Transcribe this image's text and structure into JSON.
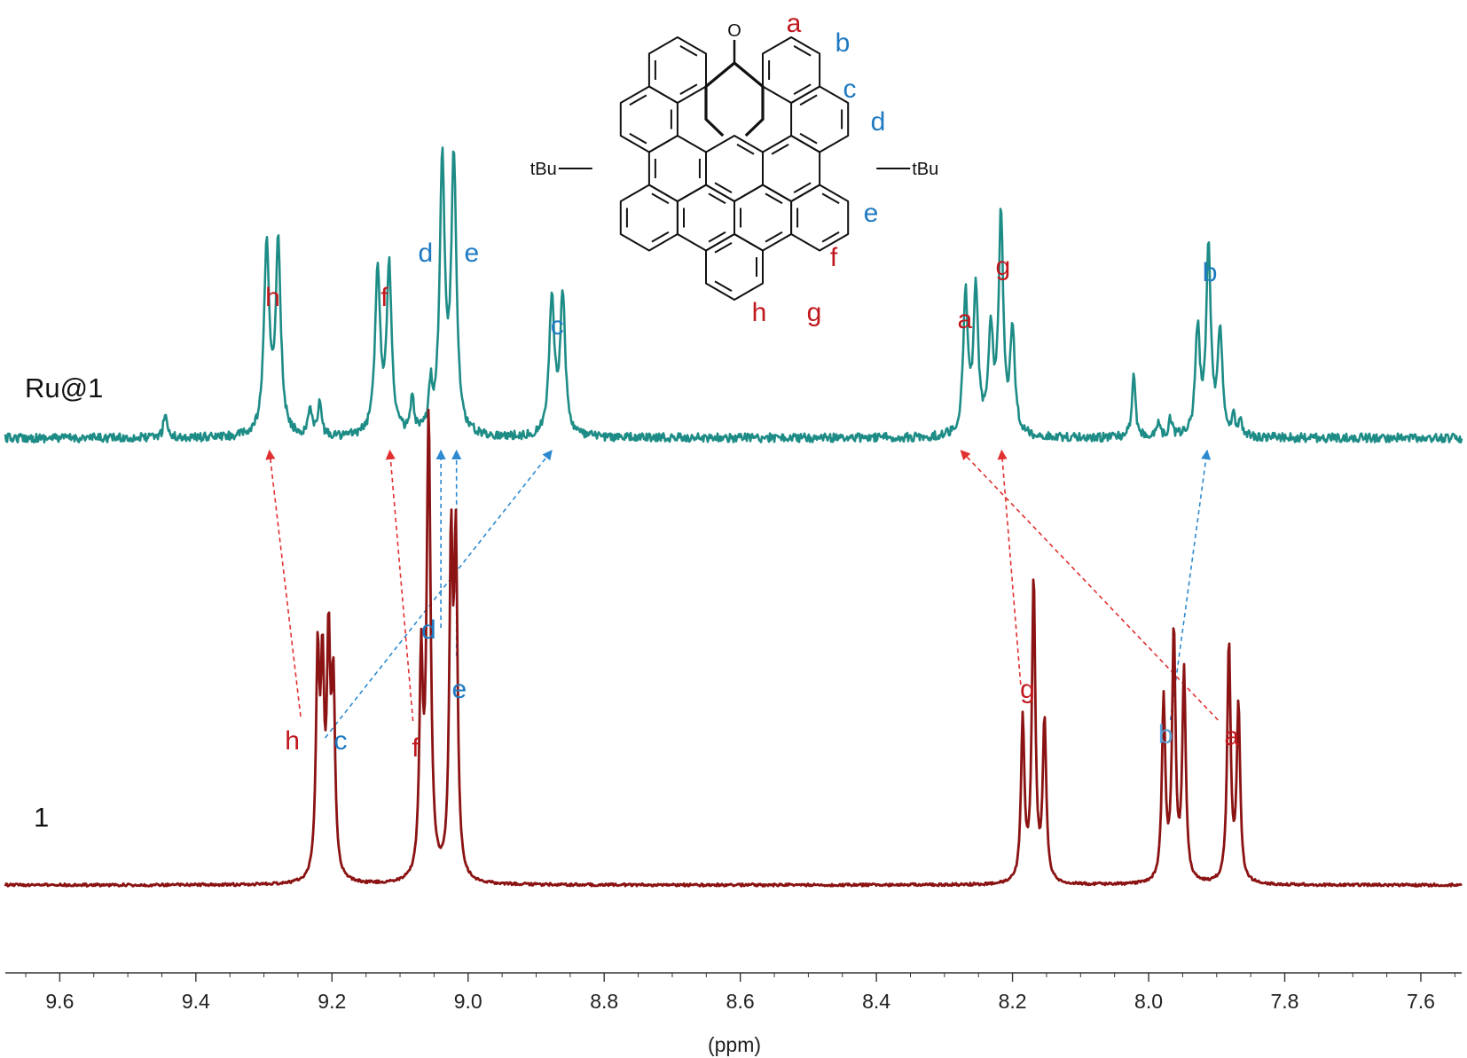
{
  "chart_data": {
    "type": "line",
    "x_axis": {
      "label": "(ppm)",
      "range": [
        9.68,
        7.54
      ],
      "reversed": true,
      "ticks": [
        9.6,
        9.4,
        9.2,
        9.0,
        8.8,
        8.6,
        8.4,
        8.2,
        8.0,
        7.8,
        7.6
      ],
      "tick_labels": [
        "9.6",
        "9.4",
        "9.2",
        "9.0",
        "8.8",
        "8.6",
        "8.4",
        "8.2",
        "8.0",
        "7.8",
        "7.6"
      ]
    },
    "grid": false,
    "series": [
      {
        "name": "Ru@1",
        "color": "#1e8c86",
        "peaks": [
          {
            "ppm": 9.296,
            "h": 0.44,
            "w": 0.0045
          },
          {
            "ppm": 9.279,
            "h": 0.44,
            "w": 0.0045
          },
          {
            "ppm": 9.133,
            "h": 0.38,
            "w": 0.0045
          },
          {
            "ppm": 9.116,
            "h": 0.38,
            "w": 0.0045
          },
          {
            "ppm": 9.038,
            "h": 0.62,
            "w": 0.0045
          },
          {
            "ppm": 9.021,
            "h": 0.63,
            "w": 0.0045
          },
          {
            "ppm": 8.877,
            "h": 0.32,
            "w": 0.0045
          },
          {
            "ppm": 8.861,
            "h": 0.32,
            "w": 0.0045
          },
          {
            "ppm": 8.269,
            "h": 0.32,
            "w": 0.004
          },
          {
            "ppm": 8.254,
            "h": 0.34,
            "w": 0.004
          },
          {
            "ppm": 8.232,
            "h": 0.24,
            "w": 0.004
          },
          {
            "ppm": 8.217,
            "h": 0.5,
            "w": 0.004
          },
          {
            "ppm": 8.2,
            "h": 0.24,
            "w": 0.004
          },
          {
            "ppm": 7.928,
            "h": 0.24,
            "w": 0.004
          },
          {
            "ppm": 7.912,
            "h": 0.43,
            "w": 0.004
          },
          {
            "ppm": 7.895,
            "h": 0.24,
            "w": 0.004
          },
          {
            "ppm": 8.022,
            "h": 0.15,
            "w": 0.003
          },
          {
            "ppm": 9.445,
            "h": 0.06,
            "w": 0.003
          },
          {
            "ppm": 9.232,
            "h": 0.07,
            "w": 0.003
          },
          {
            "ppm": 9.218,
            "h": 0.08,
            "w": 0.003
          },
          {
            "ppm": 9.082,
            "h": 0.08,
            "w": 0.003
          },
          {
            "ppm": 9.055,
            "h": 0.1,
            "w": 0.003
          },
          {
            "ppm": 7.985,
            "h": 0.03,
            "w": 0.003
          },
          {
            "ppm": 7.968,
            "h": 0.04,
            "w": 0.003
          },
          {
            "ppm": 7.875,
            "h": 0.04,
            "w": 0.003
          },
          {
            "ppm": 7.865,
            "h": 0.03,
            "w": 0.003
          }
        ]
      },
      {
        "name": "1",
        "color": "#8b1313",
        "peaks": [
          {
            "ppm": 9.221,
            "h": 0.44,
            "w": 0.003
          },
          {
            "ppm": 9.214,
            "h": 0.4,
            "w": 0.003
          },
          {
            "ppm": 9.205,
            "h": 0.46,
            "w": 0.003
          },
          {
            "ppm": 9.198,
            "h": 0.38,
            "w": 0.003
          },
          {
            "ppm": 9.069,
            "h": 0.43,
            "w": 0.003
          },
          {
            "ppm": 9.058,
            "h": 0.94,
            "w": 0.0035
          },
          {
            "ppm": 9.025,
            "h": 0.66,
            "w": 0.003
          },
          {
            "ppm": 9.018,
            "h": 0.66,
            "w": 0.003
          },
          {
            "ppm": 8.185,
            "h": 0.33,
            "w": 0.003
          },
          {
            "ppm": 8.169,
            "h": 0.62,
            "w": 0.003
          },
          {
            "ppm": 8.153,
            "h": 0.33,
            "w": 0.003
          },
          {
            "ppm": 7.978,
            "h": 0.37,
            "w": 0.003
          },
          {
            "ppm": 7.963,
            "h": 0.51,
            "w": 0.003
          },
          {
            "ppm": 7.948,
            "h": 0.43,
            "w": 0.003
          },
          {
            "ppm": 7.882,
            "h": 0.49,
            "w": 0.003
          },
          {
            "ppm": 7.868,
            "h": 0.36,
            "w": 0.003
          }
        ]
      }
    ],
    "peak_labels": [
      {
        "series": "Ru@1",
        "text": "h",
        "ppm": 9.287,
        "color": "#c0171d"
      },
      {
        "series": "Ru@1",
        "text": "f",
        "ppm": 9.123,
        "color": "#c0171d"
      },
      {
        "series": "Ru@1",
        "text": "d",
        "ppm": 9.052,
        "color": "#1f7ac2"
      },
      {
        "series": "Ru@1",
        "text": "e",
        "ppm": 9.013,
        "color": "#1f7ac2"
      },
      {
        "series": "Ru@1",
        "text": "c",
        "ppm": 8.869,
        "color": "#1f7ac2"
      },
      {
        "series": "Ru@1",
        "text": "a",
        "ppm": 8.27,
        "color": "#c0171d"
      },
      {
        "series": "Ru@1",
        "text": "g",
        "ppm": 8.214,
        "color": "#c0171d"
      },
      {
        "series": "Ru@1",
        "text": "b",
        "ppm": 7.91,
        "color": "#1f7ac2"
      },
      {
        "series": "1",
        "text": "h",
        "ppm": 9.24,
        "color": "#c0171d"
      },
      {
        "series": "1",
        "text": "c",
        "ppm": 9.203,
        "color": "#1f7ac2"
      },
      {
        "series": "1",
        "text": "f",
        "ppm": 9.085,
        "color": "#c0171d"
      },
      {
        "series": "1",
        "text": "d",
        "ppm": 9.058,
        "color": "#1f7ac2"
      },
      {
        "series": "1",
        "text": "e",
        "ppm": 9.013,
        "color": "#1f7ac2"
      },
      {
        "series": "1",
        "text": "g",
        "ppm": 8.178,
        "color": "#c0171d"
      },
      {
        "series": "1",
        "text": "b",
        "ppm": 7.975,
        "color": "#5aa4d8"
      },
      {
        "series": "1",
        "text": "a",
        "ppm": 7.878,
        "color": "#c0171d"
      }
    ],
    "shift_arrows": [
      {
        "proton": "h",
        "from_ppm": 9.246,
        "to_ppm": 9.292,
        "color": "#e03030"
      },
      {
        "proton": "c",
        "from_ppm": 9.21,
        "to_ppm": 8.877,
        "color": "#2d8ad0"
      },
      {
        "proton": "f",
        "from_ppm": 9.081,
        "to_ppm": 9.115,
        "color": "#e03030"
      },
      {
        "proton": "d",
        "from_ppm": 9.04,
        "to_ppm": 9.04,
        "color": "#2d8ad0"
      },
      {
        "proton": "e",
        "from_ppm": 9.017,
        "to_ppm": 9.017,
        "color": "#2d8ad0"
      },
      {
        "proton": "g",
        "from_ppm": 8.188,
        "to_ppm": 8.216,
        "color": "#e03030"
      },
      {
        "proton": "b",
        "from_ppm": 7.968,
        "to_ppm": 7.914,
        "color": "#2d8ad0"
      },
      {
        "proton": "a",
        "from_ppm": 7.898,
        "to_ppm": 8.276,
        "color": "#e03030"
      }
    ]
  },
  "structure": {
    "carbonyl_atom": "O",
    "substituent_left": "tBu",
    "substituent_right": "tBu",
    "labels": [
      {
        "text": "a",
        "color": "#c0171d"
      },
      {
        "text": "b",
        "color": "#1f7ac2"
      },
      {
        "text": "c",
        "color": "#1f7ac2"
      },
      {
        "text": "d",
        "color": "#1f7ac2"
      },
      {
        "text": "e",
        "color": "#1f7ac2"
      },
      {
        "text": "f",
        "color": "#c0171d"
      },
      {
        "text": "g",
        "color": "#c0171d"
      },
      {
        "text": "h",
        "color": "#c0171d"
      }
    ]
  }
}
